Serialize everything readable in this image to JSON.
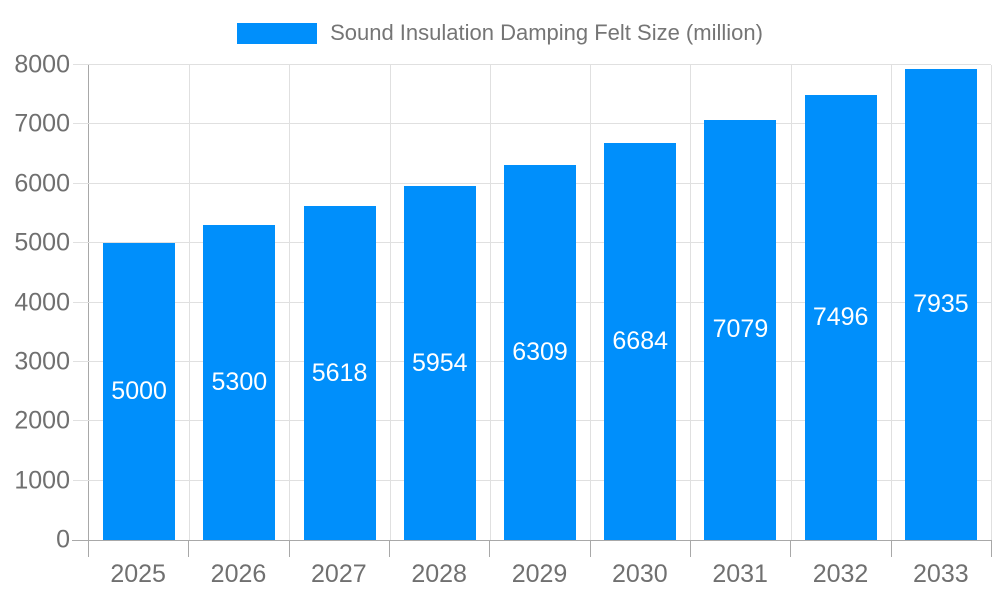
{
  "legend": {
    "label": "Sound Insulation Damping Felt Size (million)"
  },
  "chart_data": {
    "type": "bar",
    "title": "Sound Insulation Damping Felt Size (million)",
    "categories": [
      "2025",
      "2026",
      "2027",
      "2028",
      "2029",
      "2030",
      "2031",
      "2032",
      "2033"
    ],
    "values": [
      5000,
      5300,
      5618,
      5954,
      6309,
      6684,
      7079,
      7496,
      7935
    ],
    "xlabel": "",
    "ylabel": "",
    "ylim": [
      0,
      8000
    ],
    "ytick_step": 1000,
    "grid": true,
    "legend_position": "top",
    "data_labels": "centered-white",
    "colors": {
      "bar": "#008FFB",
      "grid": "#e0e0e0",
      "axis": "#a8a8a8",
      "axis_label": "#707070",
      "legend_text": "#757575",
      "data_label": "#ffffff",
      "background": "#ffffff"
    }
  }
}
